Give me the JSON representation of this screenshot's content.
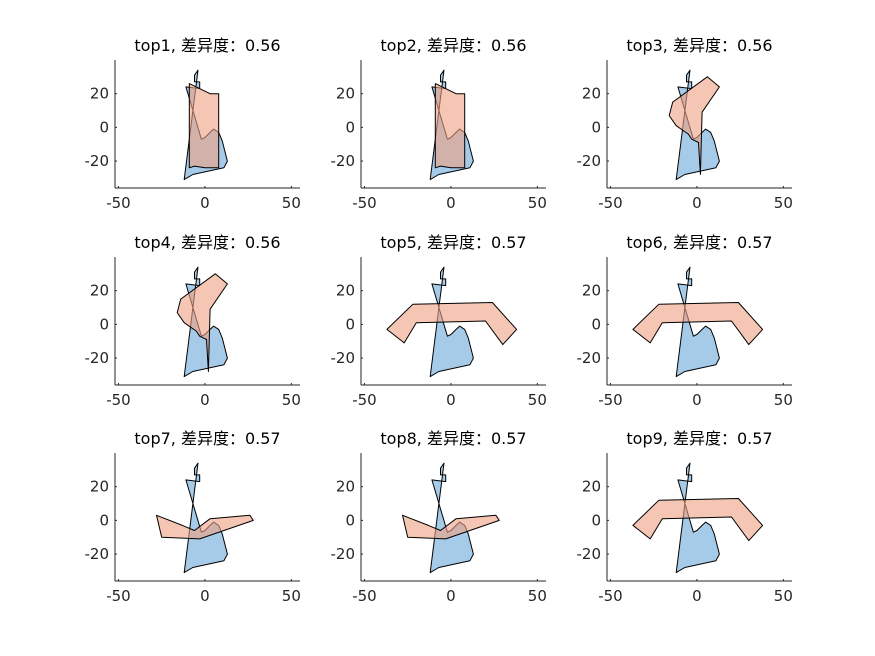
{
  "colors": {
    "shape_a": "#a6cbe9",
    "shape_b": "#f0a082",
    "axis": "#262626"
  },
  "chart_data": [
    {
      "type": "polygon-overlay",
      "title": "top1, 差异度：0.56",
      "xticks": [
        -50,
        0,
        50
      ],
      "yticks": [
        20,
        0,
        -20
      ],
      "xlim": [
        -52,
        55
      ],
      "ylim": [
        -36,
        40
      ],
      "series": [
        {
          "points": [
            [
              -6,
              31
            ],
            [
              -6,
              27
            ],
            [
              -3,
              27
            ],
            [
              -3,
              23
            ],
            [
              -11,
              24
            ],
            [
              -2,
              -7
            ],
            [
              0,
              -6
            ],
            [
              3,
              -3
            ],
            [
              5,
              -1
            ],
            [
              8,
              -3
            ],
            [
              10,
              -8
            ],
            [
              13,
              -20
            ],
            [
              11,
              -24
            ],
            [
              -7,
              -28
            ],
            [
              -12,
              -31
            ],
            [
              -4,
              34
            ]
          ]
        },
        {
          "points": [
            [
              -9,
              26
            ],
            [
              -9,
              -24
            ],
            [
              -6,
              -23
            ],
            [
              0,
              -24
            ],
            [
              4,
              -24
            ],
            [
              8,
              -24
            ],
            [
              8,
              -24
            ],
            [
              8,
              -16
            ],
            [
              8,
              -9
            ],
            [
              8,
              20
            ],
            [
              8,
              20
            ],
            [
              8,
              20
            ],
            [
              3,
              20
            ],
            [
              3,
              20
            ],
            [
              3,
              20
            ]
          ]
        }
      ]
    },
    {
      "type": "polygon-overlay",
      "title": "top2, 差异度：0.56",
      "xticks": [
        -50,
        0,
        50
      ],
      "yticks": [
        20,
        0,
        -20
      ],
      "xlim": [
        -52,
        55
      ],
      "ylim": [
        -36,
        40
      ],
      "series": [
        {
          "points": [
            [
              -6,
              31
            ],
            [
              -6,
              27
            ],
            [
              -3,
              27
            ],
            [
              -3,
              23
            ],
            [
              -11,
              24
            ],
            [
              -2,
              -7
            ],
            [
              0,
              -6
            ],
            [
              3,
              -3
            ],
            [
              5,
              -1
            ],
            [
              8,
              -3
            ],
            [
              10,
              -8
            ],
            [
              13,
              -20
            ],
            [
              11,
              -24
            ],
            [
              -7,
              -28
            ],
            [
              -12,
              -31
            ],
            [
              -4,
              34
            ]
          ]
        },
        {
          "points": [
            [
              -9,
              26
            ],
            [
              -9,
              -24
            ],
            [
              -6,
              -23
            ],
            [
              0,
              -24
            ],
            [
              4,
              -24
            ],
            [
              8,
              -24
            ],
            [
              8,
              -24
            ],
            [
              8,
              -16
            ],
            [
              8,
              -9
            ],
            [
              8,
              20
            ],
            [
              8,
              20
            ],
            [
              8,
              20
            ],
            [
              3,
              20
            ],
            [
              3,
              20
            ],
            [
              3,
              20
            ]
          ]
        }
      ]
    },
    {
      "type": "polygon-overlay",
      "title": "top3, 差异度：0.56",
      "xticks": [
        -50,
        0,
        50
      ],
      "yticks": [
        20,
        0,
        -20
      ],
      "xlim": [
        -52,
        55
      ],
      "ylim": [
        -36,
        40
      ],
      "series": [
        {
          "points": [
            [
              -6,
              31
            ],
            [
              -6,
              27
            ],
            [
              -3,
              27
            ],
            [
              -3,
              23
            ],
            [
              -11,
              24
            ],
            [
              -2,
              -7
            ],
            [
              0,
              -6
            ],
            [
              3,
              -3
            ],
            [
              5,
              -1
            ],
            [
              8,
              -3
            ],
            [
              10,
              -8
            ],
            [
              13,
              -20
            ],
            [
              11,
              -24
            ],
            [
              -7,
              -28
            ],
            [
              -12,
              -31
            ],
            [
              -4,
              34
            ]
          ]
        },
        {
          "points": [
            [
              6,
              30
            ],
            [
              13,
              24
            ],
            [
              3,
              9
            ],
            [
              2,
              -28
            ],
            [
              1,
              -10
            ],
            [
              1,
              -9
            ],
            [
              -3,
              -7
            ],
            [
              -5,
              -4
            ],
            [
              -12,
              1
            ],
            [
              -16,
              7
            ],
            [
              -14,
              15
            ]
          ]
        }
      ]
    },
    {
      "type": "polygon-overlay",
      "title": "top4, 差异度：0.56",
      "xticks": [
        -50,
        0,
        50
      ],
      "yticks": [
        20,
        0,
        -20
      ],
      "xlim": [
        -52,
        55
      ],
      "ylim": [
        -36,
        40
      ],
      "series": [
        {
          "points": [
            [
              -6,
              31
            ],
            [
              -6,
              27
            ],
            [
              -3,
              27
            ],
            [
              -3,
              23
            ],
            [
              -11,
              24
            ],
            [
              -2,
              -7
            ],
            [
              0,
              -6
            ],
            [
              3,
              -3
            ],
            [
              5,
              -1
            ],
            [
              8,
              -3
            ],
            [
              10,
              -8
            ],
            [
              13,
              -20
            ],
            [
              11,
              -24
            ],
            [
              -7,
              -28
            ],
            [
              -12,
              -31
            ],
            [
              -4,
              34
            ]
          ]
        },
        {
          "points": [
            [
              6,
              30
            ],
            [
              13,
              24
            ],
            [
              3,
              9
            ],
            [
              2,
              -28
            ],
            [
              1,
              -10
            ],
            [
              1,
              -9
            ],
            [
              -3,
              -7
            ],
            [
              -5,
              -4
            ],
            [
              -12,
              1
            ],
            [
              -16,
              7
            ],
            [
              -14,
              15
            ]
          ]
        }
      ]
    },
    {
      "type": "polygon-overlay",
      "title": "top5, 差异度：0.57",
      "xticks": [
        -50,
        0,
        50
      ],
      "yticks": [
        20,
        0,
        -20
      ],
      "xlim": [
        -52,
        55
      ],
      "ylim": [
        -36,
        40
      ],
      "series": [
        {
          "points": [
            [
              -6,
              31
            ],
            [
              -6,
              27
            ],
            [
              -3,
              27
            ],
            [
              -3,
              23
            ],
            [
              -11,
              24
            ],
            [
              -2,
              -7
            ],
            [
              0,
              -6
            ],
            [
              3,
              -3
            ],
            [
              5,
              -1
            ],
            [
              8,
              -3
            ],
            [
              10,
              -8
            ],
            [
              13,
              -20
            ],
            [
              11,
              -24
            ],
            [
              -7,
              -28
            ],
            [
              -12,
              -31
            ],
            [
              -4,
              34
            ]
          ]
        },
        {
          "points": [
            [
              -37,
              -3
            ],
            [
              -22,
              12
            ],
            [
              24,
              13
            ],
            [
              38,
              -3
            ],
            [
              30,
              -12
            ],
            [
              20,
              2
            ],
            [
              -20,
              1
            ],
            [
              -27,
              -11
            ]
          ]
        }
      ]
    },
    {
      "type": "polygon-overlay",
      "title": "top6, 差异度：0.57",
      "xticks": [
        -50,
        0,
        50
      ],
      "yticks": [
        20,
        0,
        -20
      ],
      "xlim": [
        -52,
        55
      ],
      "ylim": [
        -36,
        40
      ],
      "series": [
        {
          "points": [
            [
              -6,
              31
            ],
            [
              -6,
              27
            ],
            [
              -3,
              27
            ],
            [
              -3,
              23
            ],
            [
              -11,
              24
            ],
            [
              -2,
              -7
            ],
            [
              0,
              -6
            ],
            [
              3,
              -3
            ],
            [
              5,
              -1
            ],
            [
              8,
              -3
            ],
            [
              10,
              -8
            ],
            [
              13,
              -20
            ],
            [
              11,
              -24
            ],
            [
              -7,
              -28
            ],
            [
              -12,
              -31
            ],
            [
              -4,
              34
            ]
          ]
        },
        {
          "points": [
            [
              -37,
              -3
            ],
            [
              -22,
              12
            ],
            [
              24,
              13
            ],
            [
              38,
              -3
            ],
            [
              30,
              -12
            ],
            [
              20,
              2
            ],
            [
              -20,
              1
            ],
            [
              -27,
              -11
            ]
          ]
        }
      ]
    },
    {
      "type": "polygon-overlay",
      "title": "top7, 差异度：0.57",
      "xticks": [
        -50,
        0,
        50
      ],
      "yticks": [
        20,
        0,
        -20
      ],
      "xlim": [
        -52,
        55
      ],
      "ylim": [
        -36,
        40
      ],
      "series": [
        {
          "points": [
            [
              -6,
              31
            ],
            [
              -6,
              27
            ],
            [
              -3,
              27
            ],
            [
              -3,
              23
            ],
            [
              -11,
              24
            ],
            [
              -2,
              -7
            ],
            [
              0,
              -6
            ],
            [
              3,
              -3
            ],
            [
              5,
              -1
            ],
            [
              8,
              -3
            ],
            [
              10,
              -8
            ],
            [
              13,
              -20
            ],
            [
              11,
              -24
            ],
            [
              -7,
              -28
            ],
            [
              -12,
              -31
            ],
            [
              -4,
              34
            ]
          ]
        },
        {
          "points": [
            [
              -28,
              3
            ],
            [
              -25,
              -10
            ],
            [
              -3,
              -11
            ],
            [
              28,
              0
            ],
            [
              26,
              3
            ],
            [
              3,
              1
            ],
            [
              -6,
              -6
            ],
            [
              -13,
              -3
            ]
          ]
        }
      ]
    },
    {
      "type": "polygon-overlay",
      "title": "top8, 差异度：0.57",
      "xticks": [
        -50,
        0,
        50
      ],
      "yticks": [
        20,
        0,
        -20
      ],
      "xlim": [
        -52,
        55
      ],
      "ylim": [
        -36,
        40
      ],
      "series": [
        {
          "points": [
            [
              -6,
              31
            ],
            [
              -6,
              27
            ],
            [
              -3,
              27
            ],
            [
              -3,
              23
            ],
            [
              -11,
              24
            ],
            [
              -2,
              -7
            ],
            [
              0,
              -6
            ],
            [
              3,
              -3
            ],
            [
              5,
              -1
            ],
            [
              8,
              -3
            ],
            [
              10,
              -8
            ],
            [
              13,
              -20
            ],
            [
              11,
              -24
            ],
            [
              -7,
              -28
            ],
            [
              -12,
              -31
            ],
            [
              -4,
              34
            ]
          ]
        },
        {
          "points": [
            [
              -28,
              3
            ],
            [
              -25,
              -10
            ],
            [
              -3,
              -11
            ],
            [
              28,
              0
            ],
            [
              26,
              3
            ],
            [
              3,
              1
            ],
            [
              -6,
              -6
            ],
            [
              -13,
              -3
            ]
          ]
        }
      ]
    },
    {
      "type": "polygon-overlay",
      "title": "top9, 差异度：0.57",
      "xticks": [
        -50,
        0,
        50
      ],
      "yticks": [
        20,
        0,
        -20
      ],
      "xlim": [
        -52,
        55
      ],
      "ylim": [
        -36,
        40
      ],
      "series": [
        {
          "points": [
            [
              -6,
              31
            ],
            [
              -6,
              27
            ],
            [
              -3,
              27
            ],
            [
              -3,
              23
            ],
            [
              -11,
              24
            ],
            [
              -2,
              -7
            ],
            [
              0,
              -6
            ],
            [
              3,
              -3
            ],
            [
              5,
              -1
            ],
            [
              8,
              -3
            ],
            [
              10,
              -8
            ],
            [
              13,
              -20
            ],
            [
              11,
              -24
            ],
            [
              -7,
              -28
            ],
            [
              -12,
              -31
            ],
            [
              -4,
              34
            ]
          ]
        },
        {
          "points": [
            [
              -37,
              -3
            ],
            [
              -22,
              12
            ],
            [
              24,
              13
            ],
            [
              38,
              -3
            ],
            [
              30,
              -12
            ],
            [
              20,
              2
            ],
            [
              -20,
              1
            ],
            [
              -27,
              -11
            ]
          ]
        }
      ]
    }
  ]
}
